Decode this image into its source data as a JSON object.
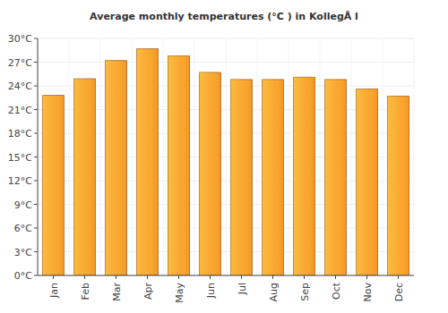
{
  "chart_data": {
    "type": "bar",
    "title": "Average monthly temperatures (°C ) in KollegÃ l",
    "categories": [
      "Jan",
      "Feb",
      "Mar",
      "Apr",
      "May",
      "Jun",
      "Jul",
      "Aug",
      "Sep",
      "Oct",
      "Nov",
      "Dec"
    ],
    "values": [
      22.8,
      24.9,
      27.2,
      28.7,
      27.8,
      25.7,
      24.8,
      24.8,
      25.1,
      24.8,
      23.6,
      22.7
    ],
    "color": "#f9a02c",
    "ylim": [
      0,
      30
    ],
    "yticks": [
      {
        "value": 0,
        "label": "0°C"
      },
      {
        "value": 3,
        "label": "3°C"
      },
      {
        "value": 6,
        "label": "6°C"
      },
      {
        "value": 9,
        "label": "9°C"
      },
      {
        "value": 12,
        "label": "12°C"
      },
      {
        "value": 15,
        "label": "15°C"
      },
      {
        "value": 18,
        "label": "18°C"
      },
      {
        "value": 21,
        "label": "21°C"
      },
      {
        "value": 24,
        "label": "24°C"
      },
      {
        "value": 27,
        "label": "27°C"
      },
      {
        "value": 30,
        "label": "30°C"
      }
    ],
    "grid": true
  }
}
